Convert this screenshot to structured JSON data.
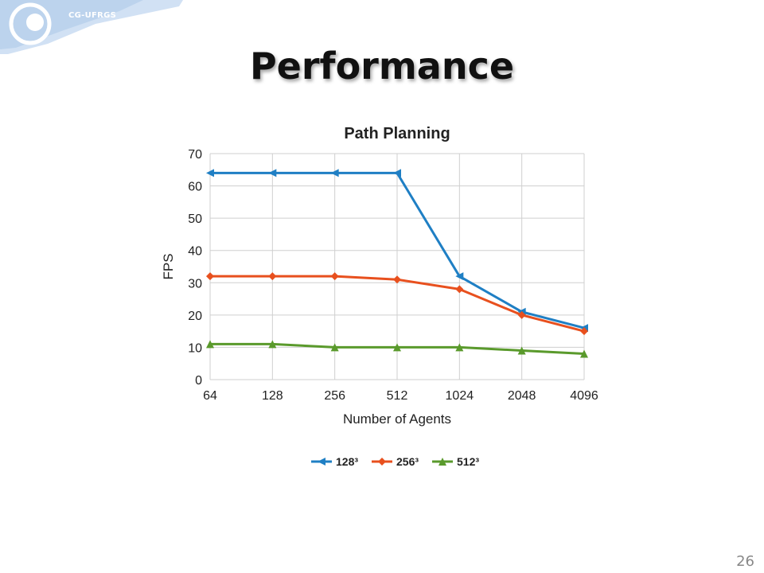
{
  "slide": {
    "logo_text": "CG-UFRGS",
    "title": "Performance",
    "page_number": "26"
  },
  "chart_data": {
    "type": "line",
    "title": "Path Planning",
    "xlabel": "Number of Agents",
    "ylabel": "FPS",
    "categories": [
      "64",
      "128",
      "256",
      "512",
      "1024",
      "2048",
      "4096"
    ],
    "ylim": [
      0,
      70
    ],
    "yticks": [
      0,
      10,
      20,
      30,
      40,
      50,
      60,
      70
    ],
    "grid": true,
    "legend_position": "bottom",
    "series": [
      {
        "name": "128³",
        "color": "#1f7fc4",
        "marker": "triangle-left",
        "values": [
          64,
          64,
          64,
          64,
          32,
          21,
          16
        ]
      },
      {
        "name": "256³",
        "color": "#e8501e",
        "marker": "diamond",
        "values": [
          32,
          32,
          32,
          31,
          28,
          20,
          15
        ]
      },
      {
        "name": "512³",
        "color": "#5a9a2c",
        "marker": "triangle-up",
        "values": [
          11,
          11,
          10,
          10,
          10,
          9,
          8
        ]
      }
    ]
  }
}
